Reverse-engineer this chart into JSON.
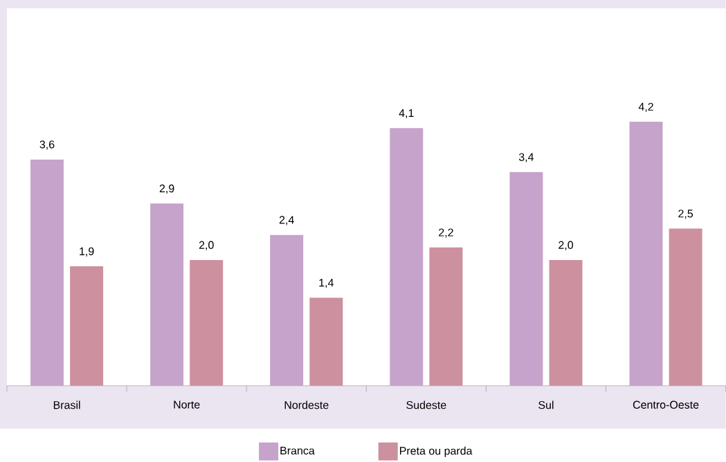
{
  "chart_data": {
    "type": "bar",
    "categories": [
      "Brasil",
      "Norte",
      "Nordeste",
      "Sudeste",
      "Sul",
      "Centro-Oeste"
    ],
    "series": [
      {
        "name": "Branca",
        "color": "#c6a3ca",
        "values": [
          3.6,
          2.9,
          2.4,
          4.1,
          3.4,
          4.2
        ],
        "value_labels": [
          "3,6",
          "2,9",
          "2,4",
          "4,1",
          "3,4",
          "4,2"
        ]
      },
      {
        "name": "Preta ou parda",
        "color": "#cc909e",
        "values": [
          1.9,
          2.0,
          1.4,
          2.2,
          2.0,
          2.5
        ],
        "value_labels": [
          "1,9",
          "2,0",
          "1,4",
          "2,2",
          "2,0",
          "2,5"
        ]
      }
    ],
    "legend": "bottom"
  }
}
